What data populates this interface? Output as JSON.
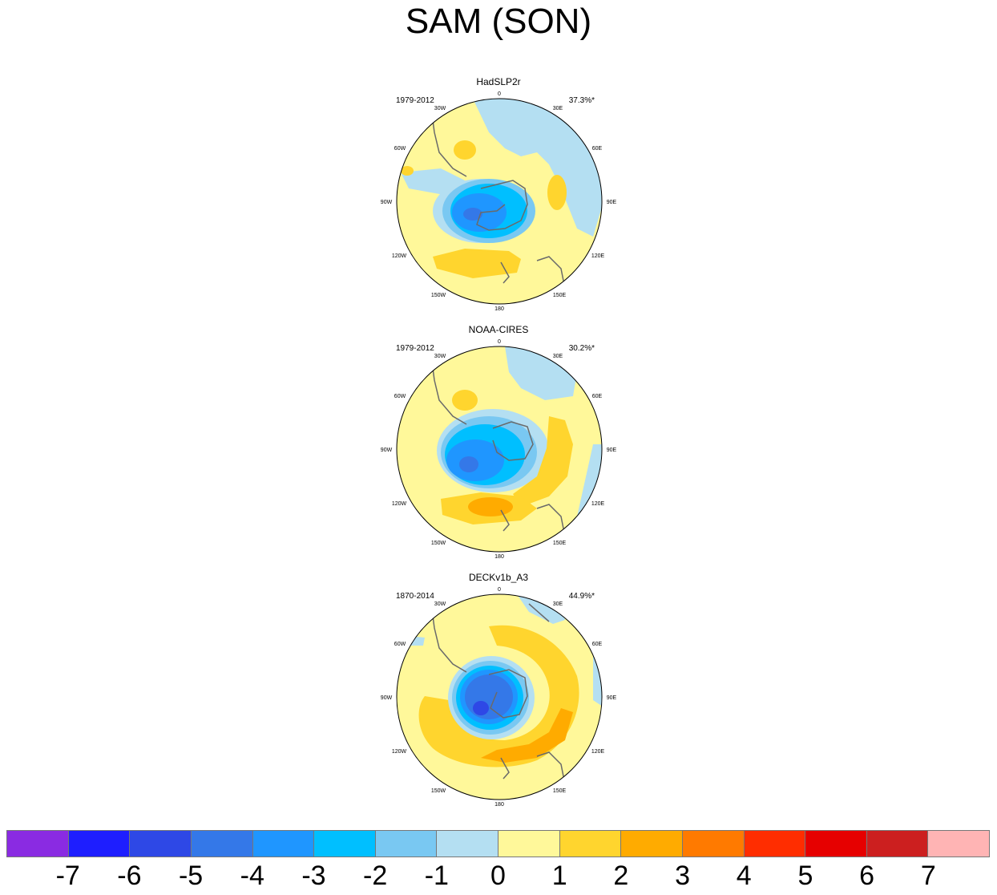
{
  "title": "SAM (SON)",
  "lon_labels": [
    "0",
    "30E",
    "60E",
    "90E",
    "120E",
    "150E",
    "180",
    "150W",
    "120W",
    "90W",
    "60W",
    "30W"
  ],
  "panels": [
    {
      "name": "HadSLP2r",
      "period": "1979-2012",
      "variance": "37.3%*"
    },
    {
      "name": "NOAA-CIRES",
      "period": "1979-2012",
      "variance": "30.2%*"
    },
    {
      "name": "DECKv1b_A3",
      "period": "1870-2014",
      "variance": "44.9%*"
    }
  ],
  "colorbar": {
    "labels": [
      "-7",
      "-6",
      "-5",
      "-4",
      "-3",
      "-2",
      "-1",
      "0",
      "1",
      "2",
      "3",
      "4",
      "5",
      "6",
      "7"
    ],
    "colors": [
      "#8a2be2",
      "#1e1eff",
      "#2e48e6",
      "#3478e8",
      "#1f96ff",
      "#00bfff",
      "#79c8f2",
      "#b4dff2",
      "#fff89a",
      "#ffd52e",
      "#ffab00",
      "#ff7a00",
      "#ff2d00",
      "#e60000",
      "#cc1f1f",
      "#ffb4b4"
    ]
  },
  "colors": {
    "coast": "#6a6a6a",
    "outline": "#000000"
  }
}
